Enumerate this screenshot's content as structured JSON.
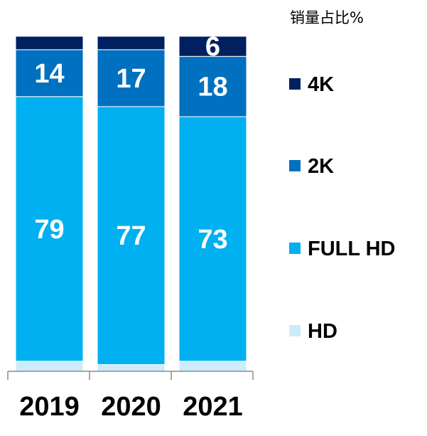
{
  "chart_data": {
    "type": "bar",
    "stacked": true,
    "title": "",
    "unit_label": "销量占比%",
    "categories": [
      "2019",
      "2020",
      "2021"
    ],
    "series": [
      {
        "name": "HD",
        "color": "#CCEBFB",
        "values": [
          3,
          2,
          3
        ],
        "labels": [
          "",
          "",
          ""
        ]
      },
      {
        "name": "FULL HD",
        "color": "#00B0F0",
        "values": [
          79,
          77,
          73
        ],
        "labels": [
          "79",
          "77",
          "73"
        ]
      },
      {
        "name": "2K",
        "color": "#0070C0",
        "values": [
          14,
          17,
          18
        ],
        "labels": [
          "14",
          "17",
          "18"
        ]
      },
      {
        "name": "4K",
        "color": "#002060",
        "values": [
          4,
          4,
          6
        ],
        "labels": [
          "",
          "",
          "6"
        ]
      }
    ],
    "legend_order": [
      "4K",
      "2K",
      "FULL HD",
      "HD"
    ],
    "legend_position": "right",
    "ylim": [
      0,
      100
    ],
    "grid": false,
    "xlabel": "",
    "ylabel": ""
  }
}
